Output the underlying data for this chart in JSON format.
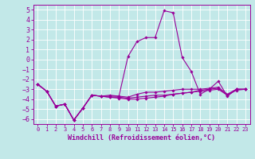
{
  "xlabel": "Windchill (Refroidissement éolien,°C)",
  "xlim": [
    -0.5,
    23.5
  ],
  "ylim": [
    -6.5,
    5.5
  ],
  "yticks": [
    5,
    4,
    3,
    2,
    1,
    0,
    -1,
    -2,
    -3,
    -4,
    -5,
    -6
  ],
  "xticks": [
    0,
    1,
    2,
    3,
    4,
    5,
    6,
    7,
    8,
    9,
    10,
    11,
    12,
    13,
    14,
    15,
    16,
    17,
    18,
    19,
    20,
    21,
    22,
    23
  ],
  "bg_color": "#c2e8e8",
  "line_color": "#990099",
  "grid_color": "#ffffff",
  "lines": [
    {
      "x": [
        0,
        1,
        2,
        3,
        4,
        5,
        6,
        7,
        8,
        9,
        10,
        11,
        12,
        13,
        14,
        15,
        16,
        17,
        18,
        19,
        20,
        21,
        22,
        23
      ],
      "y": [
        -2.5,
        -3.2,
        -4.7,
        -4.5,
        -6.1,
        -4.9,
        -3.6,
        -3.7,
        -3.8,
        -3.8,
        -3.9,
        -3.8,
        -3.7,
        -3.6,
        -3.6,
        -3.5,
        -3.4,
        -3.3,
        -3.1,
        -3.0,
        -2.9,
        -3.6,
        -3.0,
        -3.0
      ]
    },
    {
      "x": [
        0,
        1,
        2,
        3,
        4,
        5,
        6,
        7,
        8,
        9,
        10,
        11,
        12,
        13,
        14,
        15,
        16,
        17,
        18,
        19,
        20,
        21,
        22,
        23
      ],
      "y": [
        -2.5,
        -3.2,
        -4.7,
        -4.5,
        -6.1,
        -4.9,
        -3.6,
        -3.7,
        -3.7,
        -3.7,
        0.3,
        1.8,
        2.2,
        2.2,
        4.9,
        4.7,
        0.2,
        -1.2,
        -3.5,
        -3.0,
        -2.2,
        -3.7,
        -3.0,
        -3.0
      ]
    },
    {
      "x": [
        0,
        1,
        2,
        3,
        4,
        5,
        6,
        7,
        8,
        9,
        10,
        11,
        12,
        13,
        14,
        15,
        16,
        17,
        18,
        19,
        20,
        21,
        22,
        23
      ],
      "y": [
        -2.5,
        -3.2,
        -4.7,
        -4.5,
        -6.1,
        -4.9,
        -3.6,
        -3.7,
        -3.6,
        -3.7,
        -3.8,
        -3.5,
        -3.3,
        -3.3,
        -3.2,
        -3.1,
        -3.0,
        -3.0,
        -3.0,
        -2.9,
        -2.8,
        -3.5,
        -3.0,
        -3.0
      ]
    },
    {
      "x": [
        0,
        1,
        2,
        3,
        4,
        5,
        6,
        7,
        8,
        9,
        10,
        11,
        12,
        13,
        14,
        15,
        16,
        17,
        18,
        19,
        20,
        21,
        22,
        23
      ],
      "y": [
        -2.5,
        -3.2,
        -4.7,
        -4.5,
        -6.1,
        -4.9,
        -3.6,
        -3.7,
        -3.8,
        -3.9,
        -4.0,
        -4.0,
        -3.9,
        -3.8,
        -3.7,
        -3.5,
        -3.4,
        -3.3,
        -3.2,
        -3.1,
        -3.0,
        -3.6,
        -3.1,
        -3.0
      ]
    }
  ]
}
